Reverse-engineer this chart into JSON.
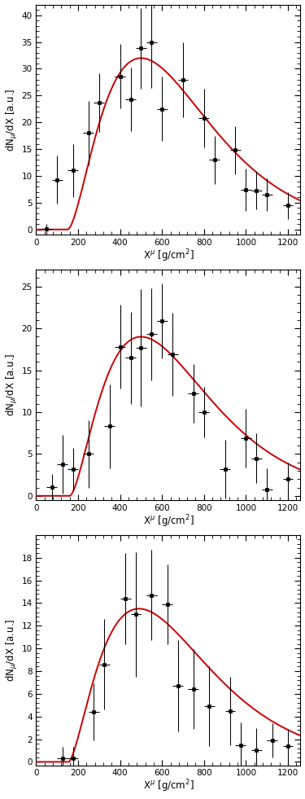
{
  "plots": [
    {
      "ylabel": "dN$_{\\mu}$/dX [a.u.]",
      "xlabel": "X$^{\\mu}$ [g/cm$^{2}$]",
      "ylim": [
        -1,
        42
      ],
      "yticks": [
        0,
        5,
        10,
        15,
        20,
        25,
        30,
        35,
        40
      ],
      "data_x": [
        50,
        100,
        175,
        250,
        300,
        400,
        450,
        500,
        550,
        600,
        700,
        800,
        850,
        950,
        1000,
        1050,
        1100,
        1200
      ],
      "data_y": [
        0.1,
        9.3,
        11.0,
        18.0,
        23.7,
        28.6,
        24.3,
        33.8,
        35.0,
        22.5,
        28.0,
        20.8,
        13.0,
        14.8,
        7.4,
        7.3,
        6.5,
        4.5
      ],
      "data_xerr": [
        25,
        25,
        25,
        25,
        25,
        25,
        25,
        25,
        25,
        25,
        25,
        25,
        25,
        25,
        25,
        25,
        25,
        25
      ],
      "data_yerr": [
        1.0,
        4.5,
        5.0,
        6.0,
        5.5,
        6.0,
        6.0,
        7.5,
        8.5,
        6.0,
        7.0,
        5.5,
        4.5,
        4.5,
        4.0,
        3.5,
        3.0,
        2.5
      ],
      "fit_params": [
        32.0,
        500,
        200,
        150
      ]
    },
    {
      "ylabel": "dN$_{\\mu}$/dX [a.u.]",
      "xlabel": "X$^{\\mu}$ [g/cm$^{2}$]",
      "ylim": [
        -0.5,
        27
      ],
      "yticks": [
        0,
        5,
        10,
        15,
        20,
        25
      ],
      "data_x": [
        75,
        125,
        175,
        250,
        350,
        400,
        450,
        500,
        550,
        600,
        650,
        750,
        800,
        900,
        1000,
        1050,
        1100,
        1200
      ],
      "data_y": [
        1.1,
        3.8,
        3.2,
        5.0,
        8.3,
        17.8,
        16.5,
        17.7,
        19.3,
        20.9,
        16.9,
        12.2,
        10.0,
        3.2,
        6.9,
        4.5,
        0.8,
        2.0
      ],
      "data_xerr": [
        25,
        25,
        25,
        25,
        25,
        25,
        25,
        25,
        25,
        25,
        25,
        25,
        25,
        25,
        25,
        25,
        25,
        25
      ],
      "data_yerr": [
        1.5,
        3.5,
        2.5,
        4.0,
        5.0,
        5.0,
        5.5,
        7.0,
        5.5,
        4.5,
        5.0,
        3.5,
        3.0,
        3.5,
        3.5,
        3.0,
        2.5,
        2.0
      ],
      "fit_params": [
        19.0,
        500,
        200,
        160
      ]
    },
    {
      "ylabel": "dN$_{\\mu}$/dX [a.u.]",
      "xlabel": "X$^{\\mu}$ [g/cm$^{2}$]",
      "ylim": [
        -0.3,
        20
      ],
      "yticks": [
        0,
        2,
        4,
        6,
        8,
        10,
        12,
        14,
        16,
        18
      ],
      "data_x": [
        125,
        175,
        275,
        325,
        425,
        475,
        550,
        625,
        675,
        750,
        825,
        925,
        975,
        1050,
        1125,
        1200
      ],
      "data_y": [
        0.3,
        0.3,
        4.4,
        8.6,
        14.4,
        13.0,
        14.7,
        13.9,
        6.7,
        6.4,
        4.9,
        4.5,
        1.5,
        1.0,
        1.9,
        1.4
      ],
      "data_xerr": [
        25,
        25,
        25,
        25,
        25,
        25,
        25,
        25,
        25,
        25,
        25,
        25,
        25,
        25,
        25,
        25
      ],
      "data_yerr": [
        1.0,
        1.0,
        2.5,
        4.0,
        4.0,
        5.5,
        4.0,
        3.5,
        4.0,
        3.5,
        3.5,
        3.0,
        2.0,
        2.0,
        1.5,
        1.5
      ],
      "fit_params": [
        13.5,
        490,
        210,
        155
      ]
    }
  ],
  "line_color": "#cc0000",
  "marker_color": "black",
  "bg_color": "#ffffff",
  "fig_bg": "#ffffff",
  "xlim": [
    0,
    1260
  ],
  "xticks": [
    0,
    200,
    400,
    600,
    800,
    1000,
    1200
  ]
}
